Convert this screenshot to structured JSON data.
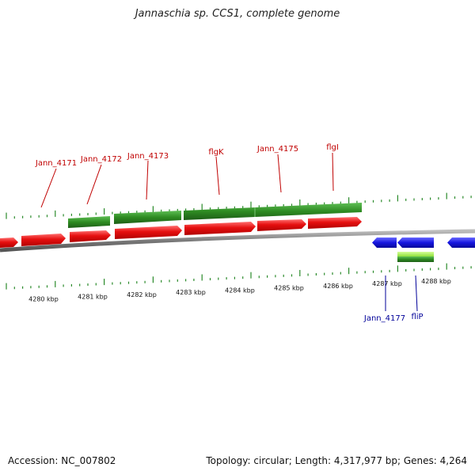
{
  "title": "Jannaschia sp. CCS1, complete genome",
  "footer": {
    "accession_label": "Accession: NC_007802",
    "stats_label": "Topology: circular; Length: 4,317,977 bp; Genes: 4,264"
  },
  "colors": {
    "forward_cds": "#e61010",
    "forward_gene": "#2e8b22",
    "reverse_cds": "#1515e0",
    "reverse_gene": "#2e8b22",
    "reverse_gene_highlight": "#aaf050",
    "forward_label": "#c00000",
    "reverse_label": "#000099",
    "backbone": "#888888",
    "tick": "#2a8a2a"
  },
  "axis": {
    "kbp_labels": [
      "4280 kbp",
      "4281 kbp",
      "4282 kbp",
      "4283 kbp",
      "4284 kbp",
      "4285 kbp",
      "4286 kbp",
      "4287 kbp",
      "4288 kbp"
    ]
  },
  "genes_forward": [
    {
      "label": "Jann_4171"
    },
    {
      "label": "Jann_4172"
    },
    {
      "label": "Jann_4173"
    },
    {
      "label": "flgK"
    },
    {
      "label": "Jann_4175"
    },
    {
      "label": "flgI"
    }
  ],
  "genes_reverse": [
    {
      "label": "Jann_4177"
    },
    {
      "label": "fliP"
    }
  ]
}
